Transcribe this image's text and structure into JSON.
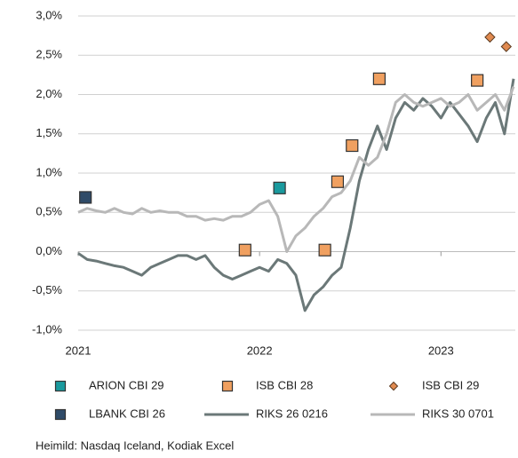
{
  "chart_data": {
    "type": "line",
    "source": "Heimild: Nasdaq Iceland, Kodiak Excel",
    "xlim": [
      2021,
      2023.41
    ],
    "xticks": [
      2021,
      2022,
      2023
    ],
    "ylim": [
      -1,
      3
    ],
    "yticks": [
      {
        "value": -1,
        "label": "-1,0%"
      },
      {
        "value": -0.5,
        "label": "-0,5%"
      },
      {
        "value": 0,
        "label": "0,0%"
      },
      {
        "value": 0.5,
        "label": "0,5%"
      },
      {
        "value": 1,
        "label": "1,0%"
      },
      {
        "value": 1.5,
        "label": "1,5%"
      },
      {
        "value": 2,
        "label": "2,0%"
      },
      {
        "value": 2.5,
        "label": "2,5%"
      },
      {
        "value": 3,
        "label": "3,0%"
      }
    ],
    "grid": true,
    "series": [
      {
        "name": "ARION CBI 29",
        "type": "scatter",
        "marker": "square",
        "color": "#1a9a9e",
        "x": [
          2022.11
        ],
        "values": [
          0.81
        ]
      },
      {
        "name": "ISB CBI 28",
        "type": "scatter",
        "marker": "square",
        "color": "#f0a060",
        "x": [
          2021.92,
          2022.36,
          2022.43,
          2022.51,
          2022.66,
          2023.2
        ],
        "values": [
          0.02,
          0.02,
          0.89,
          1.35,
          2.2,
          2.18
        ]
      },
      {
        "name": "ISB CBI 29",
        "type": "scatter",
        "marker": "diamond",
        "color": "#e08a50",
        "x": [
          2023.27,
          2023.36
        ],
        "values": [
          2.73,
          2.61
        ]
      },
      {
        "name": "LBANK CBI 26",
        "type": "scatter",
        "marker": "square",
        "color": "#2f4b68",
        "x": [
          2021.04
        ],
        "values": [
          0.69
        ]
      },
      {
        "name": "RIKS 26 0216",
        "type": "line",
        "color": "#6b7878",
        "x": [
          2021,
          2021.05,
          2021.1,
          2021.15,
          2021.2,
          2021.25,
          2021.3,
          2021.35,
          2021.4,
          2021.45,
          2021.5,
          2021.55,
          2021.6,
          2021.65,
          2021.7,
          2021.75,
          2021.8,
          2021.85,
          2021.9,
          2021.95,
          2022,
          2022.05,
          2022.1,
          2022.15,
          2022.2,
          2022.25,
          2022.3,
          2022.35,
          2022.4,
          2022.45,
          2022.5,
          2022.55,
          2022.6,
          2022.65,
          2022.7,
          2022.75,
          2022.8,
          2022.85,
          2022.9,
          2022.95,
          2023,
          2023.05,
          2023.1,
          2023.15,
          2023.2,
          2023.25,
          2023.3,
          2023.35,
          2023.4
        ],
        "values": [
          -0.02,
          -0.1,
          -0.12,
          -0.15,
          -0.18,
          -0.2,
          -0.25,
          -0.3,
          -0.2,
          -0.15,
          -0.1,
          -0.05,
          -0.05,
          -0.1,
          -0.05,
          -0.2,
          -0.3,
          -0.35,
          -0.3,
          -0.25,
          -0.2,
          -0.25,
          -0.1,
          -0.15,
          -0.3,
          -0.75,
          -0.55,
          -0.45,
          -0.3,
          -0.2,
          0.3,
          0.9,
          1.3,
          1.6,
          1.3,
          1.7,
          1.9,
          1.8,
          1.95,
          1.85,
          1.7,
          1.9,
          1.75,
          1.6,
          1.4,
          1.7,
          1.9,
          1.5,
          2.2
        ]
      },
      {
        "name": "RIKS 30 0701",
        "type": "line",
        "color": "#b8b8b8",
        "x": [
          2021,
          2021.05,
          2021.1,
          2021.15,
          2021.2,
          2021.25,
          2021.3,
          2021.35,
          2021.4,
          2021.45,
          2021.5,
          2021.55,
          2021.6,
          2021.65,
          2021.7,
          2021.75,
          2021.8,
          2021.85,
          2021.9,
          2021.95,
          2022,
          2022.05,
          2022.1,
          2022.15,
          2022.2,
          2022.25,
          2022.3,
          2022.35,
          2022.4,
          2022.45,
          2022.5,
          2022.55,
          2022.6,
          2022.65,
          2022.7,
          2022.75,
          2022.8,
          2022.85,
          2022.9,
          2022.95,
          2023,
          2023.05,
          2023.1,
          2023.15,
          2023.2,
          2023.25,
          2023.3,
          2023.35,
          2023.4
        ],
        "values": [
          0.5,
          0.55,
          0.52,
          0.5,
          0.55,
          0.5,
          0.48,
          0.55,
          0.5,
          0.52,
          0.5,
          0.5,
          0.45,
          0.45,
          0.4,
          0.42,
          0.4,
          0.45,
          0.45,
          0.5,
          0.6,
          0.65,
          0.45,
          0.0,
          0.2,
          0.3,
          0.45,
          0.55,
          0.7,
          0.75,
          0.9,
          1.2,
          1.1,
          1.2,
          1.5,
          1.9,
          2.0,
          1.9,
          1.85,
          1.9,
          1.95,
          1.85,
          1.9,
          2.0,
          1.8,
          1.9,
          2.0,
          1.8,
          2.1
        ]
      }
    ]
  }
}
